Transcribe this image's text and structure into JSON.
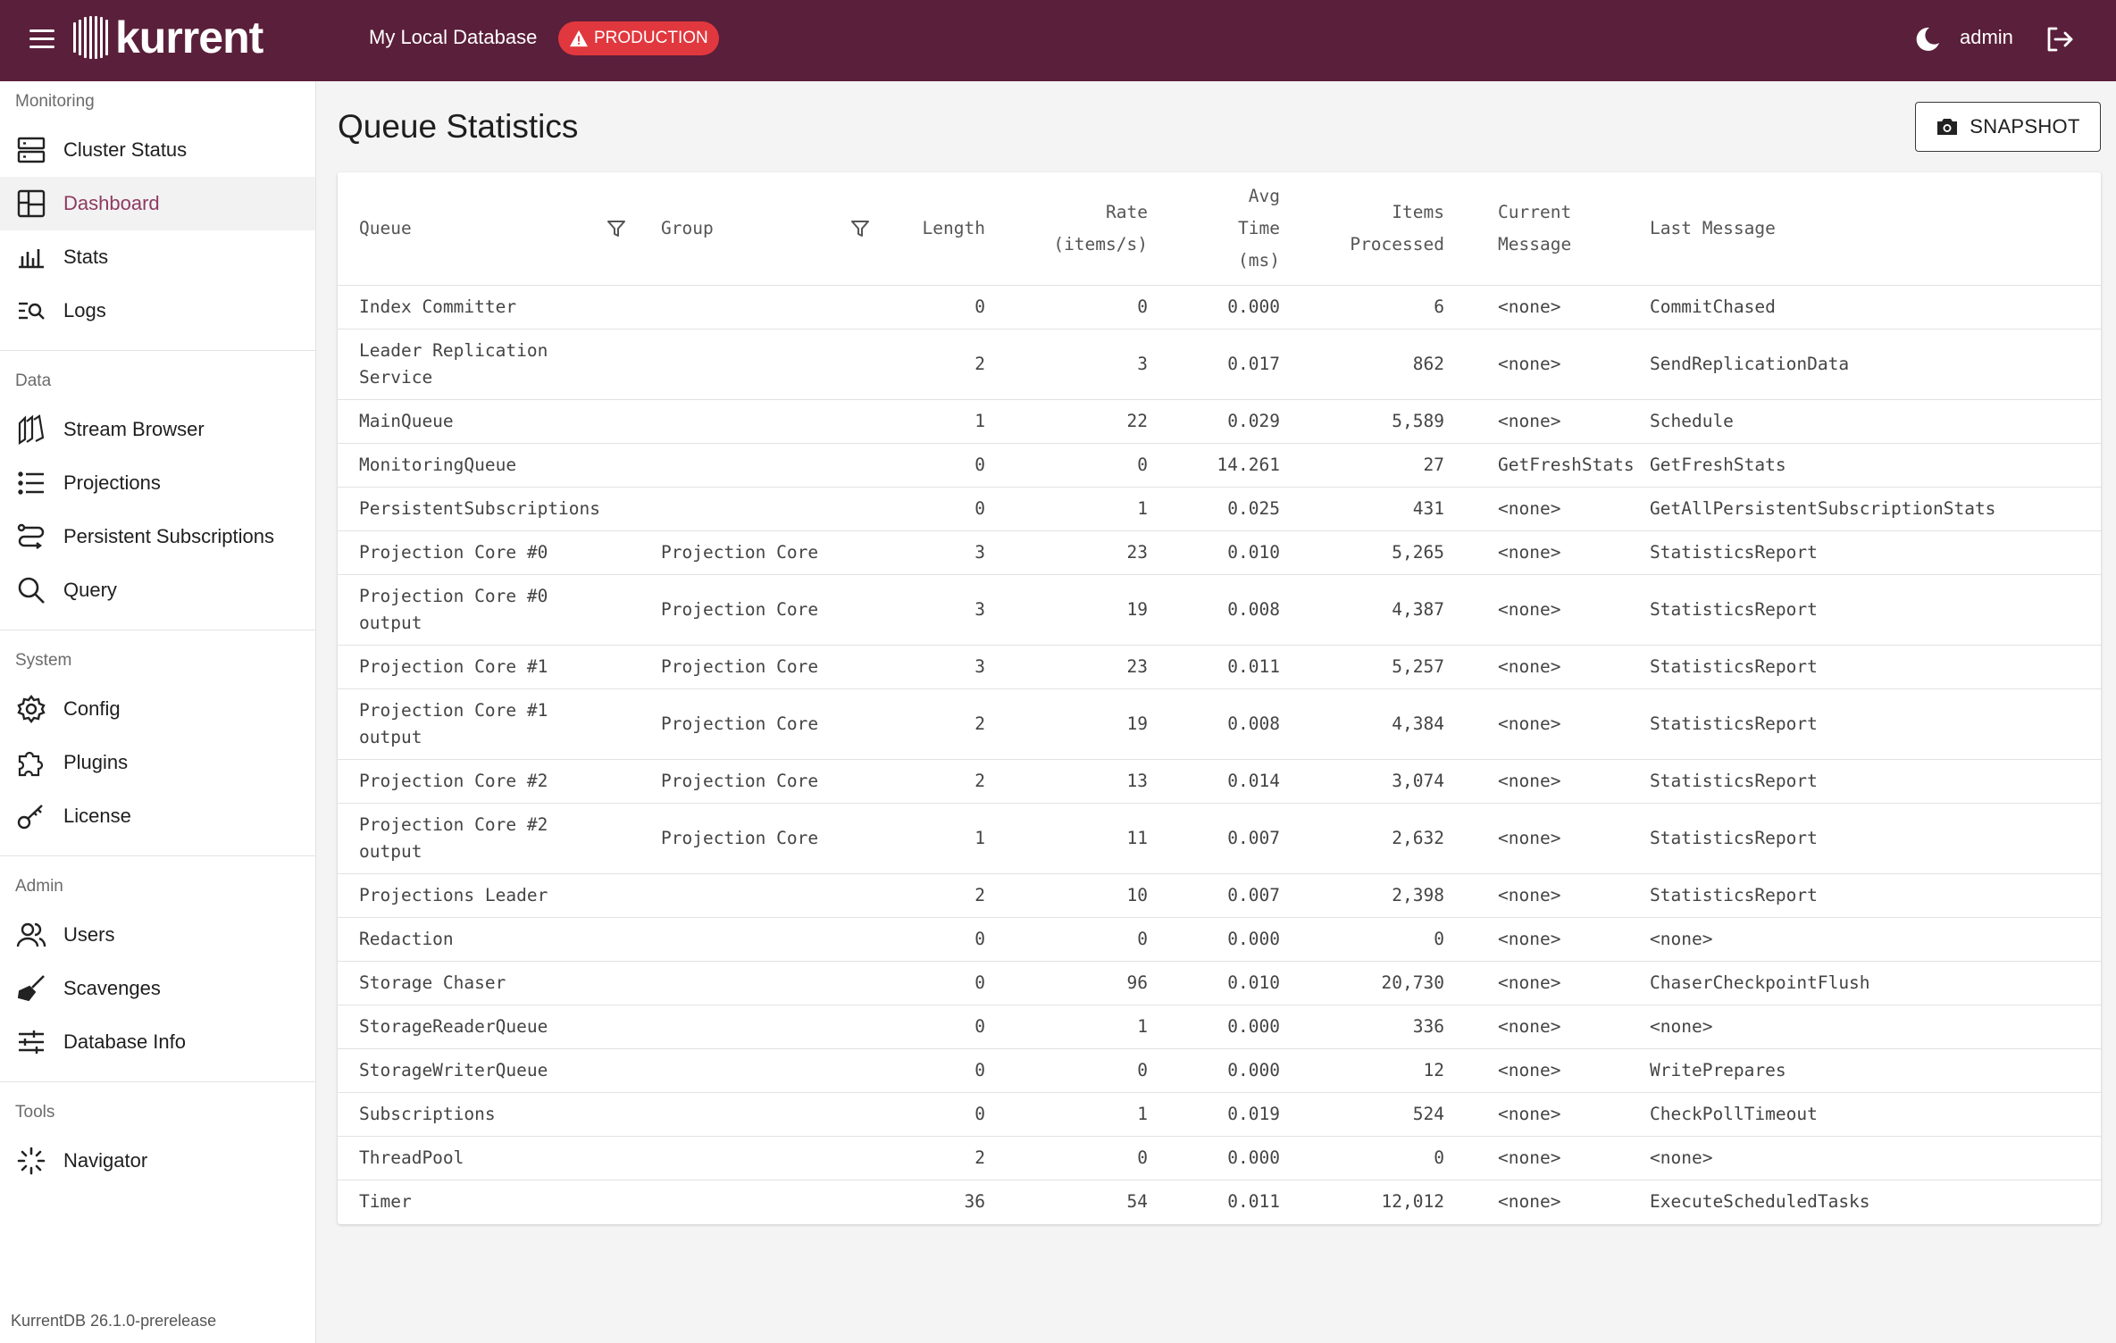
{
  "header": {
    "logo_text": "kurrent",
    "db_name": "My Local Database",
    "env_badge": "PRODUCTION",
    "user": "admin",
    "icons": {
      "menu": "hamburger-icon",
      "warning": "warning-triangle-icon",
      "theme": "moon-icon",
      "logout": "logout-icon"
    },
    "colors": {
      "bar": "#5a1f3a",
      "badge": "#e0383e"
    }
  },
  "sidebar": {
    "sections": [
      {
        "label": "Monitoring",
        "items": [
          {
            "label": "Cluster Status",
            "icon": "server-icon"
          },
          {
            "label": "Dashboard",
            "icon": "dashboard-icon",
            "active": true
          },
          {
            "label": "Stats",
            "icon": "bar-chart-icon"
          },
          {
            "label": "Logs",
            "icon": "log-search-icon"
          }
        ]
      },
      {
        "label": "Data",
        "items": [
          {
            "label": "Stream Browser",
            "icon": "stream-icon"
          },
          {
            "label": "Projections",
            "icon": "list-icon"
          },
          {
            "label": "Persistent Subscriptions",
            "icon": "route-icon"
          },
          {
            "label": "Query",
            "icon": "search-icon"
          }
        ]
      },
      {
        "label": "System",
        "items": [
          {
            "label": "Config",
            "icon": "gear-icon"
          },
          {
            "label": "Plugins",
            "icon": "puzzle-icon"
          },
          {
            "label": "License",
            "icon": "key-icon"
          }
        ]
      },
      {
        "label": "Admin",
        "items": [
          {
            "label": "Users",
            "icon": "users-icon"
          },
          {
            "label": "Scavenges",
            "icon": "broom-icon"
          },
          {
            "label": "Database Info",
            "icon": "sliders-icon"
          }
        ]
      },
      {
        "label": "Tools",
        "items": [
          {
            "label": "Navigator",
            "icon": "navigator-icon"
          }
        ]
      }
    ],
    "version": "KurrentDB 26.1.0-prerelease",
    "active_color": "#8e3a5e"
  },
  "main": {
    "title": "Queue Statistics",
    "snapshot_label": "SNAPSHOT",
    "table": {
      "headers": {
        "queue": "Queue",
        "group": "Group",
        "length": "Length",
        "rate": [
          "Rate",
          "(items/s)"
        ],
        "avg": [
          "Avg",
          "Time",
          "(ms)"
        ],
        "items": [
          "Items",
          "Processed"
        ],
        "current": [
          "Current",
          "Message"
        ],
        "last": "Last Message"
      },
      "rows": [
        {
          "queue": [
            "Index Committer"
          ],
          "group": "",
          "length": "0",
          "rate": "0",
          "avg": "0.000",
          "items": "6",
          "current": "<none>",
          "last": "CommitChased"
        },
        {
          "queue": [
            "Leader Replication",
            "Service"
          ],
          "group": "",
          "length": "2",
          "rate": "3",
          "avg": "0.017",
          "items": "862",
          "current": "<none>",
          "last": "SendReplicationData"
        },
        {
          "queue": [
            "MainQueue"
          ],
          "group": "",
          "length": "1",
          "rate": "22",
          "avg": "0.029",
          "items": "5,589",
          "current": "<none>",
          "last": "Schedule"
        },
        {
          "queue": [
            "MonitoringQueue"
          ],
          "group": "",
          "length": "0",
          "rate": "0",
          "avg": "14.261",
          "items": "27",
          "current": "GetFreshStats",
          "last": "GetFreshStats"
        },
        {
          "queue": [
            "PersistentSubscriptions"
          ],
          "group": "",
          "length": "0",
          "rate": "1",
          "avg": "0.025",
          "items": "431",
          "current": "<none>",
          "last": "GetAllPersistentSubscriptionStats"
        },
        {
          "queue": [
            "Projection Core #0"
          ],
          "group": "Projection Core",
          "length": "3",
          "rate": "23",
          "avg": "0.010",
          "items": "5,265",
          "current": "<none>",
          "last": "StatisticsReport"
        },
        {
          "queue": [
            "Projection Core #0",
            "output"
          ],
          "group": "Projection Core",
          "length": "3",
          "rate": "19",
          "avg": "0.008",
          "items": "4,387",
          "current": "<none>",
          "last": "StatisticsReport"
        },
        {
          "queue": [
            "Projection Core #1"
          ],
          "group": "Projection Core",
          "length": "3",
          "rate": "23",
          "avg": "0.011",
          "items": "5,257",
          "current": "<none>",
          "last": "StatisticsReport"
        },
        {
          "queue": [
            "Projection Core #1",
            "output"
          ],
          "group": "Projection Core",
          "length": "2",
          "rate": "19",
          "avg": "0.008",
          "items": "4,384",
          "current": "<none>",
          "last": "StatisticsReport"
        },
        {
          "queue": [
            "Projection Core #2"
          ],
          "group": "Projection Core",
          "length": "2",
          "rate": "13",
          "avg": "0.014",
          "items": "3,074",
          "current": "<none>",
          "last": "StatisticsReport"
        },
        {
          "queue": [
            "Projection Core #2",
            "output"
          ],
          "group": "Projection Core",
          "length": "1",
          "rate": "11",
          "avg": "0.007",
          "items": "2,632",
          "current": "<none>",
          "last": "StatisticsReport"
        },
        {
          "queue": [
            "Projections Leader"
          ],
          "group": "",
          "length": "2",
          "rate": "10",
          "avg": "0.007",
          "items": "2,398",
          "current": "<none>",
          "last": "StatisticsReport"
        },
        {
          "queue": [
            "Redaction"
          ],
          "group": "",
          "length": "0",
          "rate": "0",
          "avg": "0.000",
          "items": "0",
          "current": "<none>",
          "last": "<none>"
        },
        {
          "queue": [
            "Storage Chaser"
          ],
          "group": "",
          "length": "0",
          "rate": "96",
          "avg": "0.010",
          "items": "20,730",
          "current": "<none>",
          "last": "ChaserCheckpointFlush"
        },
        {
          "queue": [
            "StorageReaderQueue"
          ],
          "group": "",
          "length": "0",
          "rate": "1",
          "avg": "0.000",
          "items": "336",
          "current": "<none>",
          "last": "<none>"
        },
        {
          "queue": [
            "StorageWriterQueue"
          ],
          "group": "",
          "length": "0",
          "rate": "0",
          "avg": "0.000",
          "items": "12",
          "current": "<none>",
          "last": "WritePrepares"
        },
        {
          "queue": [
            "Subscriptions"
          ],
          "group": "",
          "length": "0",
          "rate": "1",
          "avg": "0.019",
          "items": "524",
          "current": "<none>",
          "last": "CheckPollTimeout"
        },
        {
          "queue": [
            "ThreadPool"
          ],
          "group": "",
          "length": "2",
          "rate": "0",
          "avg": "0.000",
          "items": "0",
          "current": "<none>",
          "last": "<none>"
        },
        {
          "queue": [
            "Timer"
          ],
          "group": "",
          "length": "36",
          "rate": "54",
          "avg": "0.011",
          "items": "12,012",
          "current": "<none>",
          "last": "ExecuteScheduledTasks"
        }
      ]
    }
  }
}
